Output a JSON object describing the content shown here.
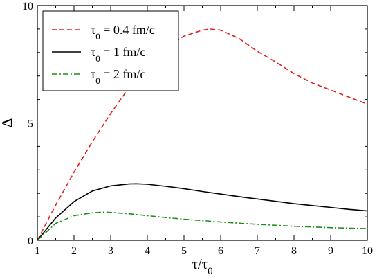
{
  "chart_data": {
    "type": "line",
    "title": "",
    "xlabel": {
      "main": "τ/τ",
      "sub": "0"
    },
    "ylabel": "Δ",
    "xlim": [
      1,
      10
    ],
    "ylim": [
      0,
      10
    ],
    "x_ticks": [
      1,
      2,
      3,
      4,
      5,
      6,
      7,
      8,
      9,
      10
    ],
    "y_ticks": [
      0,
      5,
      10
    ],
    "x_minor_step": 0.5,
    "y_minor_step": 1,
    "grid": false,
    "legend_position": "top-left",
    "series": [
      {
        "name": {
          "pre": "τ",
          "sub": "0",
          "post": " = 0.4 fm/c"
        },
        "color": "#e02020",
        "dash": "dashed",
        "x": [
          1.0,
          1.5,
          2.0,
          2.5,
          3.0,
          3.5,
          4.0,
          4.5,
          5.0,
          5.5,
          5.7,
          6.0,
          6.5,
          7.0,
          7.5,
          8.0,
          8.5,
          9.0,
          9.5,
          10.0
        ],
        "y": [
          0.0,
          1.5,
          2.9,
          4.2,
          5.4,
          6.5,
          7.5,
          8.2,
          8.7,
          8.95,
          9.0,
          8.95,
          8.6,
          8.05,
          7.6,
          7.1,
          6.7,
          6.4,
          6.1,
          5.8
        ]
      },
      {
        "name": {
          "pre": "τ",
          "sub": "0",
          "post": " = 1 fm/c"
        },
        "color": "#000000",
        "dash": "solid",
        "x": [
          1.0,
          1.5,
          2.0,
          2.5,
          3.0,
          3.5,
          3.7,
          4.0,
          4.5,
          5.0,
          5.5,
          6.0,
          6.5,
          7.0,
          7.5,
          8.0,
          8.5,
          9.0,
          9.5,
          10.0
        ],
        "y": [
          0.0,
          0.95,
          1.65,
          2.1,
          2.32,
          2.4,
          2.41,
          2.39,
          2.3,
          2.2,
          2.08,
          1.97,
          1.86,
          1.76,
          1.66,
          1.56,
          1.48,
          1.4,
          1.32,
          1.25
        ]
      },
      {
        "name": {
          "pre": "τ",
          "sub": "0",
          "post": " = 2 fm/c"
        },
        "color": "#1e8c1e",
        "dash": "dashdot",
        "x": [
          1.0,
          1.5,
          2.0,
          2.5,
          2.8,
          3.0,
          3.5,
          4.0,
          4.5,
          5.0,
          5.5,
          6.0,
          6.5,
          7.0,
          7.5,
          8.0,
          8.5,
          9.0,
          9.5,
          10.0
        ],
        "y": [
          0.0,
          0.72,
          1.05,
          1.17,
          1.2,
          1.19,
          1.13,
          1.05,
          0.97,
          0.9,
          0.84,
          0.78,
          0.73,
          0.68,
          0.64,
          0.6,
          0.57,
          0.54,
          0.52,
          0.5
        ]
      }
    ]
  }
}
